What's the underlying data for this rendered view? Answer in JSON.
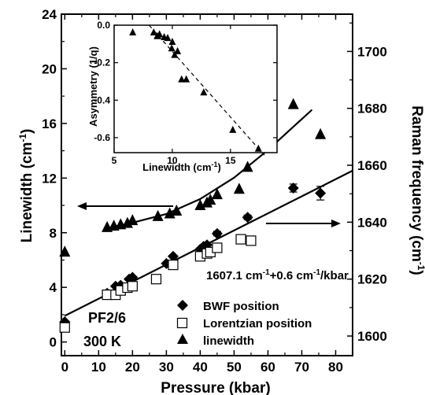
{
  "chart_data": [
    {
      "type": "scatter",
      "xlabel": "Pressure (kbar)",
      "ylabel_left": "Linewidth (cm",
      "ylabel_left_sup": "-1",
      "ylabel_left_close": ")",
      "ylabel_right": "Raman frequency (cm",
      "ylabel_right_sup": "-1",
      "ylabel_right_close": ")",
      "xlim": [
        -1,
        85
      ],
      "ylim_left": [
        -1,
        24
      ],
      "ylim_right": [
        1593.1,
        1713.1
      ],
      "xticks": [
        "0",
        "10",
        "20",
        "30",
        "40",
        "50",
        "60",
        "70",
        "80"
      ],
      "yticks_left": [
        "0",
        "4",
        "8",
        "12",
        "16",
        "20",
        "24"
      ],
      "yticks_right": [
        "1600",
        "1620",
        "1640",
        "1660",
        "1680",
        "1700"
      ],
      "annotation": "1607.1 cm",
      "annotation_sup1": "-1",
      "annotation_mid": "+0.6 cm",
      "annotation_sup2": "-1",
      "annotation_end": "/kbar",
      "sample_name": "PF2/6",
      "temperature": "300 K",
      "legend": [
        "BWF position",
        "Lorentzian position",
        "linewidth"
      ],
      "series": [
        {
          "name": "BWF position",
          "axis": "right",
          "marker": "diamond",
          "points": [
            [
              0,
              1605.0
            ],
            [
              12.5,
              1615.0
            ],
            [
              15,
              1617.5
            ],
            [
              16.5,
              1617.8
            ],
            [
              19,
              1620.0
            ],
            [
              20,
              1620.6
            ],
            [
              30,
              1625.5
            ],
            [
              32,
              1628.0
            ],
            [
              40,
              1630.5
            ],
            [
              41,
              1631.5
            ],
            [
              42,
              1632.0
            ],
            [
              45,
              1636.0
            ],
            [
              54,
              1641.7
            ],
            [
              67.5,
              1652.0
            ],
            [
              75.5,
              1650.2
            ]
          ],
          "errors": [
            [
              67.5,
              1.4
            ],
            [
              75.5,
              2.4
            ],
            [
              45,
              0.8
            ],
            [
              54,
              0.8
            ]
          ]
        },
        {
          "name": "Lorentzian position",
          "axis": "right",
          "marker": "square",
          "points": [
            [
              0,
              1603.0
            ],
            [
              12.5,
              1614.5
            ],
            [
              15,
              1614.5
            ],
            [
              16.5,
              1616.0
            ],
            [
              18.5,
              1617.0
            ],
            [
              20,
              1617.5
            ],
            [
              27,
              1620.0
            ],
            [
              32,
              1625.0
            ],
            [
              40,
              1628.0
            ],
            [
              42,
              1629.0
            ],
            [
              43,
              1629.5
            ],
            [
              45,
              1631.0
            ],
            [
              52,
              1634.0
            ],
            [
              55,
              1633.5
            ]
          ]
        },
        {
          "name": "linewidth",
          "axis": "left",
          "marker": "triangle",
          "points": [
            [
              0,
              6.6
            ],
            [
              12.5,
              8.4
            ],
            [
              14.5,
              8.5
            ],
            [
              16.5,
              8.6
            ],
            [
              18.5,
              8.7
            ],
            [
              20,
              8.9
            ],
            [
              27.5,
              9.2
            ],
            [
              31,
              9.4
            ],
            [
              33,
              9.6
            ],
            [
              40,
              10.0
            ],
            [
              42,
              10.2
            ],
            [
              43,
              10.4
            ],
            [
              45,
              10.8
            ],
            [
              51.5,
              11.2
            ],
            [
              54,
              12.8
            ],
            [
              67.5,
              17.4
            ],
            [
              75.5,
              15.2
            ]
          ]
        }
      ],
      "fit_curve_left": [
        [
          12,
          8.31
        ],
        [
          20,
          8.73
        ],
        [
          30,
          9.37
        ],
        [
          40,
          10.47
        ],
        [
          50,
          12.03
        ],
        [
          60,
          14.05
        ],
        [
          73,
          17.0
        ]
      ],
      "fit_line_right": [
        [
          0,
          1607.1
        ],
        [
          85,
          1658.1
        ]
      ]
    },
    {
      "type": "scatter",
      "xlabel": "Linewidth (cm",
      "xlabel_sup": "-1",
      "xlabel_close": ")",
      "ylabel": "Asymmetry (1/q)",
      "xlim": [
        5,
        19
      ],
      "ylim": [
        -0.68,
        0.0
      ],
      "xticks": [
        "5",
        "10",
        "15"
      ],
      "yticks": [
        "0.0",
        "-0.2",
        "-0.4",
        "-0.6"
      ],
      "series": [
        {
          "name": "asymmetry",
          "marker": "triangle",
          "points": [
            [
              6.6,
              -0.04
            ],
            [
              8.4,
              -0.04
            ],
            [
              8.7,
              -0.06
            ],
            [
              8.9,
              -0.05
            ],
            [
              9.3,
              -0.065
            ],
            [
              9.6,
              -0.07
            ],
            [
              9.95,
              -0.125
            ],
            [
              10.0,
              -0.09
            ],
            [
              10.2,
              -0.16
            ],
            [
              10.45,
              -0.14
            ],
            [
              10.8,
              -0.29
            ],
            [
              11.2,
              -0.29
            ],
            [
              12.7,
              -0.36
            ],
            [
              15.2,
              -0.56
            ],
            [
              17.4,
              -0.66
            ]
          ]
        }
      ],
      "fit_line": [
        [
          8,
          0.0
        ],
        [
          18,
          -0.7
        ]
      ]
    }
  ]
}
